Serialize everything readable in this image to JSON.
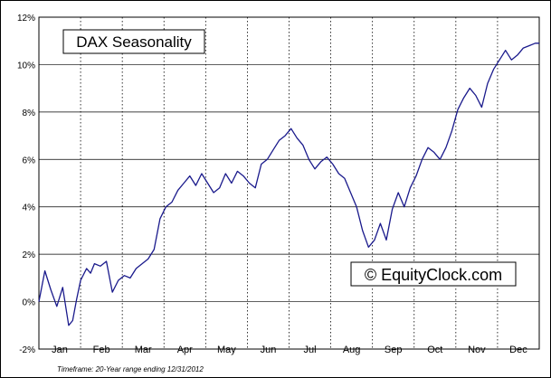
{
  "chart_data": {
    "type": "line",
    "title": "DAX Seasonality",
    "watermark": "© EquityClock.com",
    "footnote": "Timeframe: 20-Year range ending 12/31/2012",
    "xlabel": "",
    "ylabel": "",
    "ylim": [
      -2,
      12
    ],
    "y_ticks": [
      "-2%",
      "0%",
      "2%",
      "4%",
      "6%",
      "8%",
      "10%",
      "12%"
    ],
    "months": [
      "Jan",
      "Feb",
      "Mar",
      "Apr",
      "May",
      "Jun",
      "Jul",
      "Aug",
      "Sep",
      "Oct",
      "Nov",
      "Dec"
    ],
    "grid": {
      "horizontal": true,
      "vertical_dotted": true
    },
    "line_color": "#1a1a8c",
    "x_unit": "trading day of year (0-252)",
    "series": [
      {
        "name": "",
        "x": [
          0,
          3,
          6,
          9,
          12,
          15,
          17,
          19,
          21,
          24,
          26,
          28,
          31,
          34,
          37,
          40,
          43,
          46,
          49,
          52,
          55,
          58,
          61,
          64,
          67,
          70,
          73,
          76,
          79,
          82,
          85,
          88,
          91,
          94,
          97,
          100,
          103,
          106,
          109,
          112,
          115,
          118,
          121,
          124,
          127,
          130,
          133,
          136,
          139,
          142,
          145,
          148,
          151,
          154,
          157,
          160,
          163,
          166,
          169,
          172,
          175,
          178,
          181,
          184,
          187,
          190,
          193,
          196,
          199,
          202,
          205,
          208,
          211,
          214,
          217,
          220,
          223,
          226,
          229,
          232,
          235,
          238,
          241,
          244,
          247,
          250,
          252
        ],
        "y": [
          0.0,
          1.3,
          0.5,
          -0.2,
          0.6,
          -1.0,
          -0.8,
          0.1,
          0.9,
          1.4,
          1.2,
          1.6,
          1.5,
          1.7,
          0.4,
          0.9,
          1.1,
          1.0,
          1.4,
          1.6,
          1.8,
          2.2,
          3.5,
          4.0,
          4.2,
          4.7,
          5.0,
          5.3,
          4.9,
          5.4,
          5.0,
          4.6,
          4.8,
          5.4,
          5.0,
          5.5,
          5.3,
          5.0,
          4.8,
          5.8,
          6.0,
          6.4,
          6.8,
          7.0,
          7.3,
          6.9,
          6.6,
          6.0,
          5.6,
          5.9,
          6.1,
          5.8,
          5.4,
          5.2,
          4.6,
          4.0,
          3.0,
          2.3,
          2.6,
          3.3,
          2.6,
          3.9,
          4.6,
          4.0,
          4.8,
          5.3,
          6.0,
          6.5,
          6.3,
          6.0,
          6.5,
          7.2,
          8.1,
          8.6,
          9.0,
          8.7,
          8.2,
          9.2,
          9.8,
          10.2,
          10.6,
          10.2,
          10.4,
          10.7,
          10.8,
          10.9,
          10.9
        ]
      }
    ]
  }
}
